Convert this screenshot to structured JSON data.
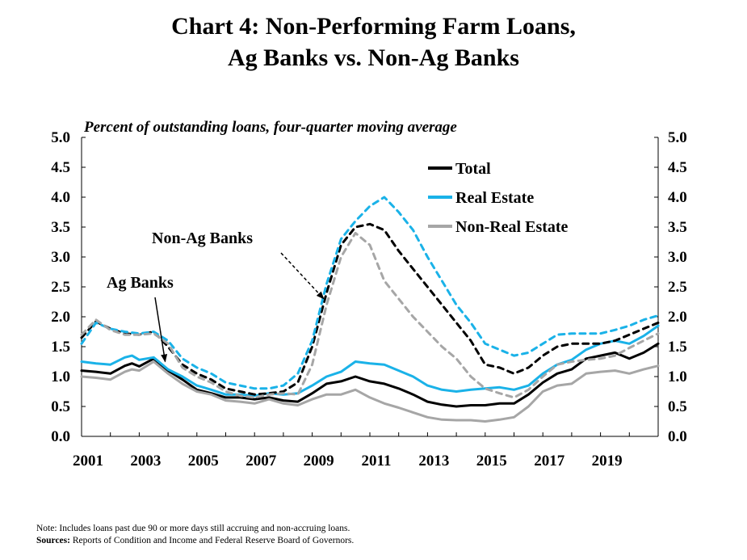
{
  "title_line1": "Chart 4: Non-Performing Farm Loans,",
  "title_line2": "Ag Banks vs. Non-Ag Banks",
  "note": "Note: Includes loans past due 90 or more days still accruing and non-accruing loans.",
  "sources_label": "Sources:",
  "sources_text": " Reports of Condition and Income and Federal Reserve Board of Governors.",
  "chart_data": {
    "type": "line",
    "title": "Chart 4: Non-Performing Farm Loans, Ag Banks vs. Non-Ag Banks",
    "ylabel": "Percent of outstanding loans, four-quarter moving average",
    "xlabel": "",
    "ylim": [
      0,
      5
    ],
    "xlim": [
      2001,
      2021
    ],
    "yticks": [
      "0.0",
      "0.5",
      "1.0",
      "1.5",
      "2.0",
      "2.5",
      "3.0",
      "3.5",
      "4.0",
      "4.5",
      "5.0"
    ],
    "xticks": [
      "2001",
      "2003",
      "2005",
      "2007",
      "2009",
      "2011",
      "2013",
      "2015",
      "2017",
      "2019"
    ],
    "dual_y_axis": true,
    "grid": false,
    "legend_position": "top-right",
    "legend": [
      {
        "label": "Total",
        "color": "#000000"
      },
      {
        "label": "Real Estate",
        "color": "#1ab2e8"
      },
      {
        "label": "Non-Real Estate",
        "color": "#a6a6a6"
      }
    ],
    "annotations": [
      {
        "text": "Non-Ag Banks",
        "target_x": 2009.4,
        "target_y": 2.3
      },
      {
        "text": "Ag Banks",
        "target_x": 2003.9,
        "target_y": 1.25
      }
    ],
    "series": [
      {
        "name": "Total",
        "group": "Ag Banks",
        "style": "solid",
        "color": "#000000",
        "x": [
          2001,
          2001.5,
          2002,
          2002.5,
          2002.75,
          2003,
          2003.5,
          2004,
          2004.5,
          2005,
          2005.5,
          2006,
          2006.5,
          2007,
          2007.5,
          2008,
          2008.5,
          2009,
          2009.5,
          2010,
          2010.5,
          2011,
          2011.5,
          2012,
          2012.5,
          2013,
          2013.5,
          2014,
          2014.5,
          2015,
          2015.5,
          2016,
          2016.5,
          2017,
          2017.5,
          2018,
          2018.5,
          2019,
          2019.5,
          2020,
          2020.5,
          2021
        ],
        "y": [
          1.1,
          1.08,
          1.05,
          1.18,
          1.22,
          1.17,
          1.3,
          1.1,
          0.95,
          0.78,
          0.72,
          0.65,
          0.65,
          0.62,
          0.65,
          0.6,
          0.58,
          0.72,
          0.88,
          0.92,
          1.0,
          0.92,
          0.88,
          0.8,
          0.7,
          0.58,
          0.53,
          0.5,
          0.52,
          0.52,
          0.55,
          0.55,
          0.7,
          0.9,
          1.05,
          1.12,
          1.3,
          1.35,
          1.4,
          1.3,
          1.4,
          1.55
        ]
      },
      {
        "name": "Real Estate",
        "group": "Ag Banks",
        "style": "solid",
        "color": "#1ab2e8",
        "x": [
          2001,
          2001.5,
          2002,
          2002.5,
          2002.75,
          2003,
          2003.5,
          2004,
          2004.5,
          2005,
          2005.5,
          2006,
          2006.5,
          2007,
          2007.5,
          2008,
          2008.5,
          2009,
          2009.5,
          2010,
          2010.5,
          2011,
          2011.5,
          2012,
          2012.5,
          2013,
          2013.5,
          2014,
          2014.5,
          2015,
          2015.5,
          2016,
          2016.5,
          2017,
          2017.5,
          2018,
          2018.5,
          2019,
          2019.5,
          2020,
          2020.5,
          2021
        ],
        "y": [
          1.25,
          1.22,
          1.2,
          1.32,
          1.35,
          1.28,
          1.32,
          1.12,
          1.0,
          0.85,
          0.78,
          0.7,
          0.7,
          0.68,
          0.72,
          0.7,
          0.72,
          0.85,
          1.0,
          1.08,
          1.25,
          1.22,
          1.2,
          1.1,
          1.0,
          0.85,
          0.78,
          0.75,
          0.78,
          0.8,
          0.82,
          0.78,
          0.85,
          1.05,
          1.2,
          1.28,
          1.45,
          1.55,
          1.6,
          1.55,
          1.68,
          1.85
        ]
      },
      {
        "name": "Non-Real Estate",
        "group": "Ag Banks",
        "style": "solid",
        "color": "#a6a6a6",
        "x": [
          2001,
          2001.5,
          2002,
          2002.5,
          2002.75,
          2003,
          2003.5,
          2004,
          2004.5,
          2005,
          2005.5,
          2006,
          2006.5,
          2007,
          2007.5,
          2008,
          2008.5,
          2009,
          2009.5,
          2010,
          2010.5,
          2011,
          2011.5,
          2012,
          2012.5,
          2013,
          2013.5,
          2014,
          2014.5,
          2015,
          2015.5,
          2016,
          2016.5,
          2017,
          2017.5,
          2018,
          2018.5,
          2019,
          2019.5,
          2020,
          2020.5,
          2021
        ],
        "y": [
          1.0,
          0.98,
          0.95,
          1.08,
          1.12,
          1.1,
          1.25,
          1.05,
          0.88,
          0.75,
          0.7,
          0.6,
          0.58,
          0.55,
          0.62,
          0.55,
          0.52,
          0.62,
          0.7,
          0.7,
          0.78,
          0.65,
          0.55,
          0.48,
          0.4,
          0.32,
          0.28,
          0.27,
          0.27,
          0.25,
          0.28,
          0.32,
          0.5,
          0.75,
          0.85,
          0.88,
          1.05,
          1.08,
          1.1,
          1.05,
          1.12,
          1.18
        ]
      },
      {
        "name": "Total",
        "group": "Non-Ag Banks",
        "style": "dashed",
        "color": "#000000",
        "x": [
          2001,
          2001.5,
          2002,
          2002.5,
          2003,
          2003.5,
          2004,
          2004.5,
          2005,
          2005.5,
          2006,
          2006.5,
          2007,
          2007.5,
          2008,
          2008.5,
          2009,
          2009.5,
          2010,
          2010.5,
          2011,
          2011.5,
          2012,
          2012.5,
          2013,
          2013.5,
          2014,
          2014.5,
          2015,
          2015.5,
          2016,
          2016.5,
          2017,
          2017.5,
          2018,
          2018.5,
          2019,
          2019.5,
          2020,
          2020.5,
          2021
        ],
        "y": [
          1.65,
          1.92,
          1.8,
          1.72,
          1.7,
          1.75,
          1.5,
          1.2,
          1.05,
          0.95,
          0.8,
          0.75,
          0.7,
          0.72,
          0.75,
          0.9,
          1.5,
          2.4,
          3.2,
          3.5,
          3.55,
          3.45,
          3.1,
          2.8,
          2.5,
          2.2,
          1.9,
          1.6,
          1.2,
          1.15,
          1.05,
          1.15,
          1.35,
          1.5,
          1.55,
          1.55,
          1.55,
          1.6,
          1.7,
          1.8,
          1.9
        ]
      },
      {
        "name": "Real Estate",
        "group": "Non-Ag Banks",
        "style": "dashed",
        "color": "#1ab2e8",
        "x": [
          2001,
          2001.5,
          2002,
          2002.5,
          2003,
          2003.5,
          2004,
          2004.5,
          2005,
          2005.5,
          2006,
          2006.5,
          2007,
          2007.5,
          2008,
          2008.5,
          2009,
          2009.5,
          2010,
          2010.5,
          2011,
          2011.5,
          2012,
          2012.5,
          2013,
          2013.5,
          2014,
          2014.5,
          2015,
          2015.5,
          2016,
          2016.5,
          2017,
          2017.5,
          2018,
          2018.5,
          2019,
          2019.5,
          2020,
          2020.5,
          2021
        ],
        "y": [
          1.55,
          1.9,
          1.8,
          1.75,
          1.72,
          1.75,
          1.6,
          1.3,
          1.15,
          1.05,
          0.9,
          0.85,
          0.8,
          0.8,
          0.85,
          1.05,
          1.6,
          2.55,
          3.3,
          3.6,
          3.85,
          4.0,
          3.75,
          3.45,
          3.0,
          2.6,
          2.2,
          1.9,
          1.55,
          1.45,
          1.35,
          1.4,
          1.55,
          1.7,
          1.72,
          1.72,
          1.72,
          1.78,
          1.85,
          1.95,
          2.02
        ]
      },
      {
        "name": "Non-Real Estate",
        "group": "Non-Ag Banks",
        "style": "dashed",
        "color": "#a6a6a6",
        "x": [
          2001,
          2001.5,
          2002,
          2002.5,
          2003,
          2003.5,
          2004,
          2004.5,
          2005,
          2005.5,
          2006,
          2006.5,
          2007,
          2007.5,
          2008,
          2008.5,
          2009,
          2009.5,
          2010,
          2010.5,
          2011,
          2011.5,
          2012,
          2012.5,
          2013,
          2013.5,
          2014,
          2014.5,
          2015,
          2015.5,
          2016,
          2016.5,
          2017,
          2017.5,
          2018,
          2018.5,
          2019,
          2019.5,
          2020,
          2020.5,
          2021
        ],
        "y": [
          1.7,
          1.95,
          1.78,
          1.7,
          1.7,
          1.72,
          1.55,
          1.15,
          1.0,
          0.9,
          0.75,
          0.68,
          0.65,
          0.7,
          0.72,
          0.7,
          1.2,
          2.2,
          3.0,
          3.4,
          3.2,
          2.6,
          2.3,
          2.0,
          1.75,
          1.5,
          1.3,
          1.0,
          0.8,
          0.72,
          0.65,
          0.78,
          1.0,
          1.2,
          1.25,
          1.28,
          1.3,
          1.35,
          1.48,
          1.6,
          1.72
        ]
      }
    ]
  }
}
